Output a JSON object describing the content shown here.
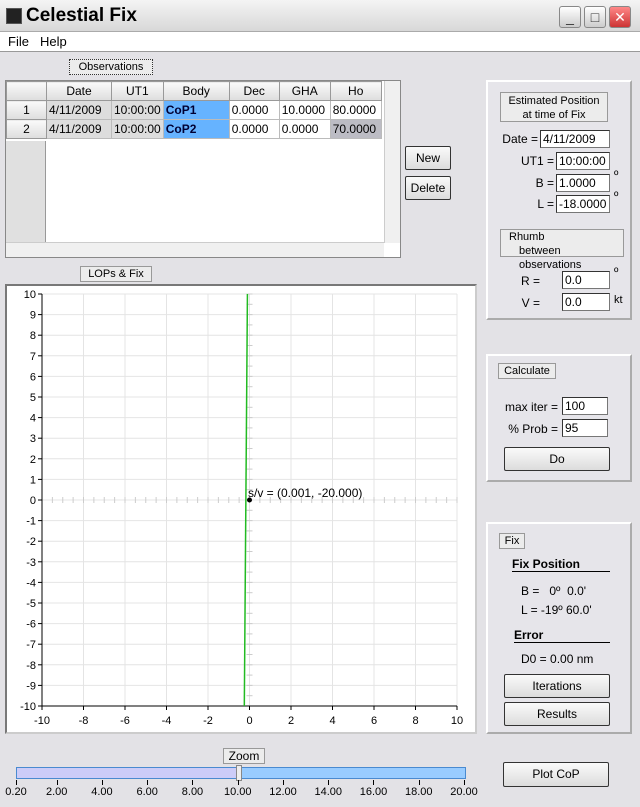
{
  "window": {
    "title": "Celestial Fix",
    "minimize": "_",
    "maximize": "□",
    "close": "✕"
  },
  "menu": {
    "file": "File",
    "help": "Help"
  },
  "observations": {
    "label": "Observations",
    "columns": [
      "Date",
      "UT1",
      "Body",
      "Dec",
      "GHA",
      "Ho"
    ],
    "rows": [
      {
        "num": "1",
        "date": "4/11/2009",
        "ut1": "10:00:00",
        "body": "CoP1",
        "dec": "0.0000",
        "gha": "10.0000",
        "ho": "80.0000"
      },
      {
        "num": "2",
        "date": "4/11/2009",
        "ut1": "10:00:00",
        "body": "CoP2",
        "dec": "0.0000",
        "gha": "0.0000",
        "ho": "70.0000"
      }
    ],
    "new_label": "New",
    "delete_label": "Delete"
  },
  "lops": {
    "label": "LOPs & Fix",
    "annotation": "s/v = (0.001, -20.000)"
  },
  "chart_data": {
    "type": "line",
    "xlim": [
      -10,
      10
    ],
    "ylim": [
      -10,
      10
    ],
    "grid": true,
    "x_ticks": [
      -10,
      -8,
      -6,
      -4,
      -2,
      0,
      2,
      4,
      6,
      8,
      10
    ],
    "y_ticks": [
      10,
      9,
      8,
      7,
      6,
      5,
      4,
      3,
      2,
      1,
      0,
      -1,
      -2,
      -3,
      -4,
      -5,
      -6,
      -7,
      -8,
      -9,
      -10
    ],
    "series": [
      {
        "color": "#22bb22",
        "points": [
          [
            -0.1,
            10
          ],
          [
            -0.25,
            -10
          ]
        ]
      }
    ],
    "point": {
      "x": 0,
      "y": 0
    }
  },
  "estimated": {
    "label_line1": "Estimated Position",
    "label_line2": "at time of Fix",
    "date_label": "Date =",
    "date": "4/11/2009",
    "ut1_label": "UT1 =",
    "ut1": "10:00:00",
    "b_label": "B =",
    "b": "1.0000",
    "l_label": "L =",
    "l": "-18.0000",
    "deg": "º"
  },
  "rhumb": {
    "label_line1": "Rhumb",
    "label_line2": "between observations",
    "r_label": "R =",
    "r": "0.0",
    "v_label": "V =",
    "v": "0.0",
    "kt": "kt",
    "deg": "º"
  },
  "calculate": {
    "label": "Calculate",
    "maxiter_label": "max iter =",
    "maxiter": "100",
    "prob_label": "% Prob =",
    "prob": "95",
    "do_label": "Do"
  },
  "fix": {
    "label": "Fix",
    "position_title": "Fix Position",
    "b": "B =   0º  0.0'",
    "l": "L = -19º 60.0'",
    "error_title": "Error",
    "d0": "D0 = 0.00 nm",
    "iterations": "Iterations",
    "results": "Results"
  },
  "zoom": {
    "label": "Zoom",
    "value": 10.0,
    "min": 0.2,
    "max": 20.0,
    "ticks": [
      "0.20",
      "2.00",
      "4.00",
      "6.00",
      "8.00",
      "10.00",
      "12.00",
      "14.00",
      "16.00",
      "18.00",
      "20.00"
    ]
  },
  "plot_cop": "Plot CoP",
  "colors": {
    "selected_cell": "#66b3ff",
    "ho_gray": "#bcbcc4",
    "lop": "#22bb22",
    "slider_left": "#ccccf8",
    "slider_right": "#99ccff"
  }
}
